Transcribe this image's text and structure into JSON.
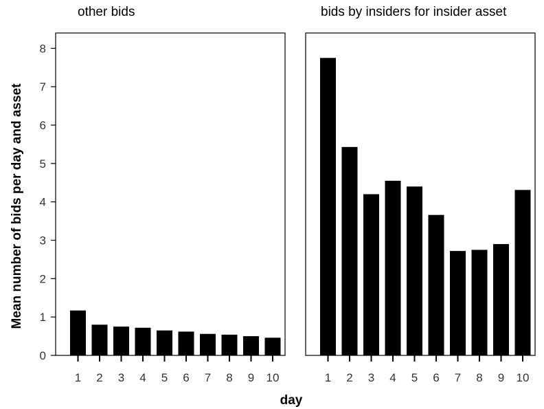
{
  "chart_data": [
    {
      "type": "bar",
      "title": "other bids",
      "categories": [
        "1",
        "2",
        "3",
        "4",
        "5",
        "6",
        "7",
        "8",
        "9",
        "10"
      ],
      "values": [
        1.17,
        0.8,
        0.75,
        0.72,
        0.65,
        0.62,
        0.56,
        0.54,
        0.5,
        0.46
      ],
      "ylim": [
        0,
        8.4
      ],
      "yticks": [
        "0",
        "1",
        "2",
        "3",
        "4",
        "5",
        "6",
        "7",
        "8"
      ],
      "bar_color": "#000000"
    },
    {
      "type": "bar",
      "title": "bids by insiders for insider asset",
      "categories": [
        "1",
        "2",
        "3",
        "4",
        "5",
        "6",
        "7",
        "8",
        "9",
        "10"
      ],
      "values": [
        7.75,
        5.43,
        4.2,
        4.55,
        4.4,
        3.66,
        2.72,
        2.75,
        2.9,
        4.31
      ],
      "ylim": [
        0,
        8.4
      ],
      "bar_color": "#000000"
    }
  ],
  "axes": {
    "ylabel": "Mean number of bids per day and asset",
    "xlabel": "day"
  }
}
